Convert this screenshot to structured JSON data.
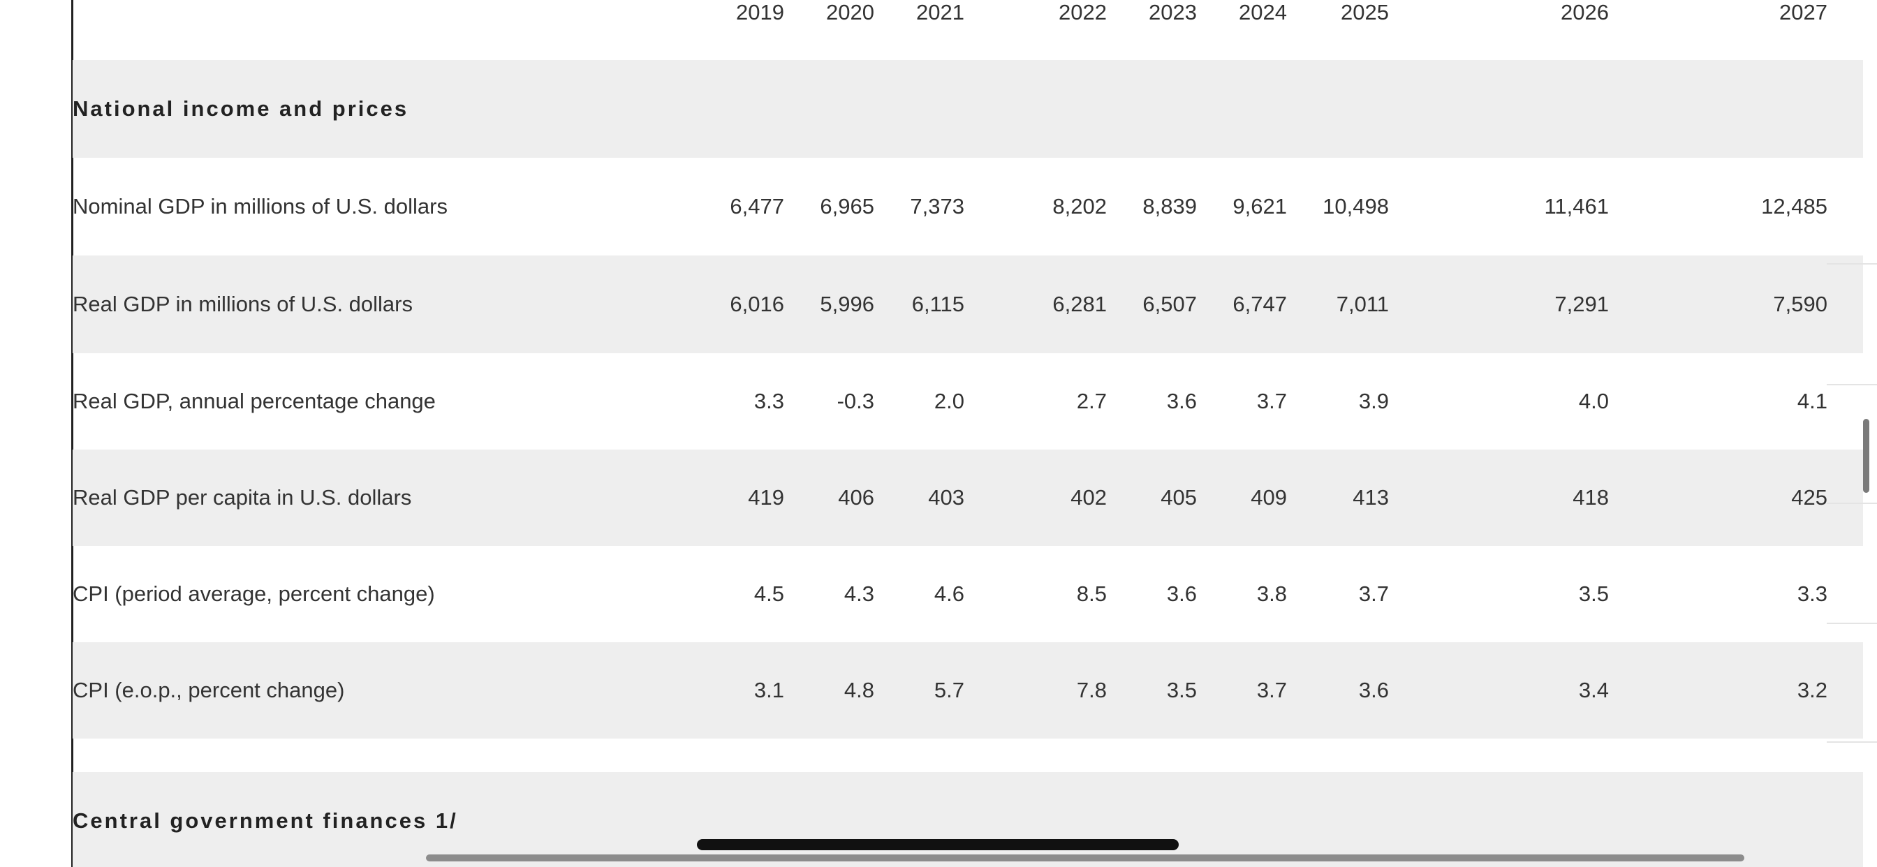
{
  "table": {
    "years": [
      "2019",
      "2020",
      "2021",
      "2022",
      "2023",
      "2024",
      "2025",
      "2026",
      "2027"
    ],
    "sections": [
      {
        "title": "National income and prices",
        "rows": [
          {
            "label": "Nominal GDP in millions of U.S. dollars",
            "values": [
              "6,477",
              "6,965",
              "7,373",
              "8,202",
              "8,839",
              "9,621",
              "10,498",
              "11,461",
              "12,485"
            ]
          },
          {
            "label": "Real GDP in millions of U.S. dollars",
            "values": [
              "6,016",
              "5,996",
              "6,115",
              "6,281",
              "6,507",
              "6,747",
              "7,011",
              "7,291",
              "7,590"
            ]
          },
          {
            "label": "Real GDP, annual percentage change",
            "values": [
              "3.3",
              "-0.3",
              "2.0",
              "2.7",
              "3.6",
              "3.7",
              "3.9",
              "4.0",
              "4.1"
            ]
          },
          {
            "label": "Real GDP per capita in U.S. dollars",
            "values": [
              "419",
              "406",
              "403",
              "402",
              "405",
              "409",
              "413",
              "418",
              "425"
            ]
          },
          {
            "label": "CPI (period average, percent change)",
            "values": [
              "4.5",
              "4.3",
              "4.6",
              "8.5",
              "3.6",
              "3.8",
              "3.7",
              "3.5",
              "3.3"
            ]
          },
          {
            "label": "CPI (e.o.p., percent change)",
            "values": [
              "3.1",
              "4.8",
              "5.7",
              "7.8",
              "3.5",
              "3.7",
              "3.6",
              "3.4",
              "3.2"
            ]
          }
        ]
      },
      {
        "title": "Central government finances 1/",
        "rows": []
      }
    ]
  }
}
